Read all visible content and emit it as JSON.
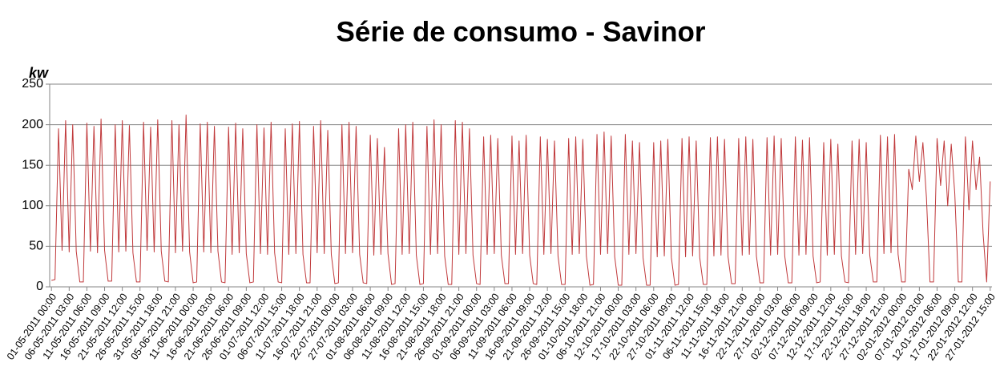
{
  "chart_data": {
    "type": "line",
    "title": "Série de consumo - Savinor",
    "y_label": "kw",
    "categories": [
      "01-05-2011 00:00",
      null,
      null,
      null,
      null,
      "06-05-2011 03:00",
      null,
      null,
      null,
      null,
      "11-05-2011 06:00",
      null,
      null,
      null,
      null,
      "16-05-2011 09:00",
      null,
      null,
      null,
      null,
      "21-05-2011 12:00",
      null,
      null,
      null,
      null,
      "26-05-2011 15:00",
      null,
      null,
      null,
      null,
      "31-05-2011 18:00",
      null,
      null,
      null,
      null,
      "05-06-2011 21:00",
      null,
      null,
      null,
      null,
      "11-06-2011 00:00",
      null,
      null,
      null,
      null,
      "16-06-2011 03:00",
      null,
      null,
      null,
      null,
      "21-06-2011 06:00",
      null,
      null,
      null,
      null,
      "26-06-2011 09:00",
      null,
      null,
      null,
      null,
      "01-07-2011 12:00",
      null,
      null,
      null,
      null,
      "06-07-2011 15:00",
      null,
      null,
      null,
      null,
      "11-07-2011 18:00",
      null,
      null,
      null,
      null,
      "16-07-2011 21:00",
      null,
      null,
      null,
      null,
      "22-07-2011 00:00",
      null,
      null,
      null,
      null,
      "27-07-2011 03:00",
      null,
      null,
      null,
      null,
      "01-08-2011 06:00",
      null,
      null,
      null,
      null,
      "06-08-2011 09:00",
      null,
      null,
      null,
      null,
      "11-08-2011 12:00",
      null,
      null,
      null,
      null,
      "16-08-2011 15:00",
      null,
      null,
      null,
      null,
      "21-08-2011 18:00",
      null,
      null,
      null,
      null,
      "26-08-2011 21:00",
      null,
      null,
      null,
      null,
      "01-09-2011 00:00",
      null,
      null,
      null,
      null,
      "06-09-2011 03:00",
      null,
      null,
      null,
      null,
      "11-09-2011 06:00",
      null,
      null,
      null,
      null,
      "16-09-2011 09:00",
      null,
      null,
      null,
      null,
      "21-09-2011 12:00",
      null,
      null,
      null,
      null,
      "26-09-2011 15:00",
      null,
      null,
      null,
      null,
      "01-10-2011 18:00",
      null,
      null,
      null,
      null,
      "06-10-2011 21:00",
      null,
      null,
      null,
      null,
      "12-10-2011 00:00",
      null,
      null,
      null,
      null,
      "17-10-2011 03:00",
      null,
      null,
      null,
      null,
      "22-10-2011 06:00",
      null,
      null,
      null,
      null,
      "27-10-2011 09:00",
      null,
      null,
      null,
      null,
      "01-11-2011 12:00",
      null,
      null,
      null,
      null,
      "06-11-2011 15:00",
      null,
      null,
      null,
      null,
      "11-11-2011 18:00",
      null,
      null,
      null,
      null,
      "16-11-2011 21:00",
      null,
      null,
      null,
      null,
      "22-11-2011 00:00",
      null,
      null,
      null,
      null,
      "27-11-2011 03:00",
      null,
      null,
      null,
      null,
      "02-12-2011 06:00",
      null,
      null,
      null,
      null,
      "07-12-2011 09:00",
      null,
      null,
      null,
      null,
      "12-12-2011 12:00",
      null,
      null,
      null,
      null,
      "17-12-2011 15:00",
      null,
      null,
      null,
      null,
      "22-12-2011 18:00",
      null,
      null,
      null,
      null,
      "27-12-2011 21:00",
      null,
      null,
      null,
      null,
      "02-01-2012 00:00",
      null,
      null,
      null,
      null,
      "07-01-2012 03:00",
      null,
      null,
      null,
      null,
      "12-01-2012 06:00",
      null,
      null,
      null,
      null,
      "17-01-2012 09:00",
      null,
      null,
      null,
      null,
      "22-01-2012 12:00",
      null,
      null,
      null,
      null,
      "27-01-2012 15:00"
    ],
    "values": [
      8,
      9,
      195,
      45,
      205,
      43,
      200,
      44,
      6,
      6,
      202,
      44,
      198,
      42,
      207,
      45,
      7,
      7,
      200,
      43,
      205,
      44,
      199,
      42,
      6,
      6,
      203,
      45,
      197,
      43,
      206,
      44,
      7,
      6,
      205,
      42,
      200,
      44,
      212,
      43,
      5,
      6,
      201,
      43,
      203,
      42,
      198,
      44,
      6,
      5,
      197,
      40,
      202,
      42,
      195,
      41,
      5,
      6,
      200,
      41,
      196,
      40,
      203,
      42,
      6,
      5,
      195,
      40,
      201,
      41,
      204,
      40,
      5,
      5,
      198,
      42,
      205,
      41,
      193,
      40,
      4,
      5,
      200,
      41,
      203,
      42,
      198,
      40,
      5,
      4,
      187,
      39,
      183,
      40,
      172,
      41,
      3,
      4,
      195,
      40,
      200,
      41,
      203,
      39,
      3,
      4,
      198,
      40,
      206,
      41,
      200,
      38,
      3,
      3,
      205,
      40,
      203,
      41,
      195,
      39,
      4,
      3,
      185,
      40,
      187,
      41,
      183,
      39,
      4,
      4,
      186,
      40,
      180,
      41,
      187,
      39,
      4,
      3,
      185,
      40,
      182,
      41,
      180,
      38,
      3,
      3,
      183,
      40,
      185,
      41,
      182,
      38,
      2,
      3,
      188,
      40,
      191,
      41,
      186,
      37,
      2,
      2,
      188,
      40,
      180,
      41,
      178,
      36,
      2,
      2,
      178,
      37,
      180,
      38,
      182,
      36,
      2,
      3,
      183,
      37,
      185,
      38,
      180,
      36,
      3,
      3,
      184,
      38,
      185,
      39,
      182,
      37,
      4,
      4,
      183,
      39,
      185,
      40,
      182,
      38,
      5,
      5,
      184,
      39,
      186,
      40,
      183,
      38,
      5,
      5,
      185,
      39,
      181,
      40,
      184,
      38,
      5,
      6,
      178,
      39,
      182,
      40,
      176,
      38,
      6,
      5,
      180,
      40,
      182,
      41,
      178,
      39,
      6,
      6,
      187,
      41,
      185,
      42,
      188,
      40,
      6,
      6,
      145,
      120,
      186,
      130,
      178,
      110,
      6,
      6,
      183,
      125,
      180,
      100,
      176,
      115,
      6,
      6,
      185,
      95,
      180,
      120,
      160,
      65,
      6,
      130
    ],
    "color": "#c0393b",
    "ylim": [
      0,
      250
    ],
    "yticks": [
      0,
      50,
      100,
      150,
      200,
      250
    ],
    "grid": true
  }
}
